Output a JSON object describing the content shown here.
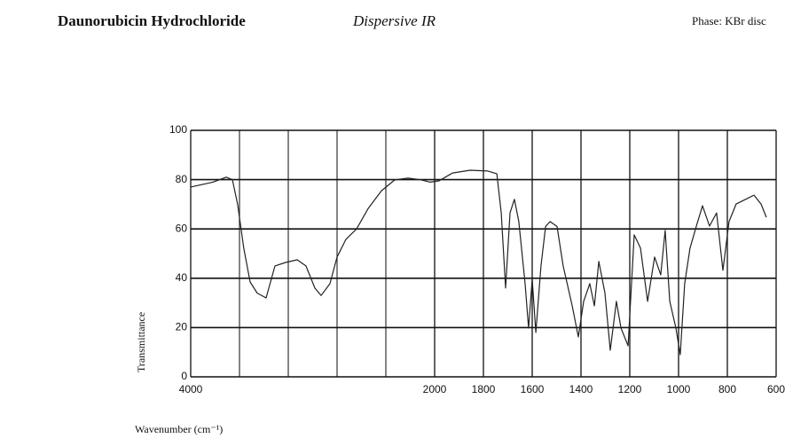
{
  "title": "Daunorubicin Hydrochloride",
  "method": "Dispersive IR",
  "phase": "Phase: KBr disc",
  "chart_data": {
    "type": "line",
    "ylabel": "Transmittance",
    "xlabel": "Wavenumber (cm⁻¹)",
    "xlim": [
      4000,
      600
    ],
    "ylim": [
      0,
      100
    ],
    "xticks": [
      4000,
      2000,
      1800,
      1600,
      1400,
      1200,
      1000,
      800,
      600
    ],
    "yticks": [
      0,
      20,
      40,
      60,
      80,
      100
    ],
    "grid": true,
    "x": [
      4000,
      3818,
      3709,
      3658,
      3615,
      3564,
      3513,
      3455,
      3382,
      3309,
      3222,
      3127,
      3055,
      2982,
      2931,
      2858,
      2800,
      2727,
      2640,
      2545,
      2436,
      2327,
      2218,
      2109,
      2036,
      1982,
      1927,
      1855,
      1782,
      1745,
      1727,
      1709,
      1691,
      1673,
      1655,
      1629,
      1615,
      1600,
      1585,
      1564,
      1545,
      1527,
      1498,
      1473,
      1436,
      1411,
      1389,
      1364,
      1345,
      1327,
      1302,
      1280,
      1255,
      1236,
      1207,
      1182,
      1156,
      1127,
      1098,
      1073,
      1055,
      1036,
      1011,
      993,
      975,
      953,
      927,
      902,
      873,
      844,
      818,
      793,
      764,
      727,
      691,
      662,
      640
    ],
    "series": [
      {
        "color": "#222222",
        "values": [
          77,
          79,
          81,
          80,
          70,
          52,
          38.5,
          34,
          32,
          45,
          46.4,
          47.5,
          45,
          36,
          33,
          37.8,
          48.6,
          55.8,
          60,
          68.3,
          75.5,
          79.9,
          80.6,
          79.9,
          79,
          79.5,
          82.7,
          83.8,
          83.5,
          82.4,
          66.5,
          36,
          66.5,
          72,
          63,
          37.8,
          19.8,
          39.6,
          18,
          45,
          61,
          63,
          61,
          45,
          28.8,
          16.2,
          30.6,
          37.8,
          28.8,
          46.8,
          34,
          10.8,
          30.6,
          19.8,
          12.6,
          57.6,
          52.2,
          30.6,
          48.6,
          41.4,
          59.4,
          30.6,
          19.8,
          9,
          37.8,
          52.2,
          61.2,
          69.4,
          61.2,
          66.5,
          43.2,
          63,
          70.1,
          71.9,
          73.7,
          70.1,
          64.7
        ]
      }
    ]
  }
}
